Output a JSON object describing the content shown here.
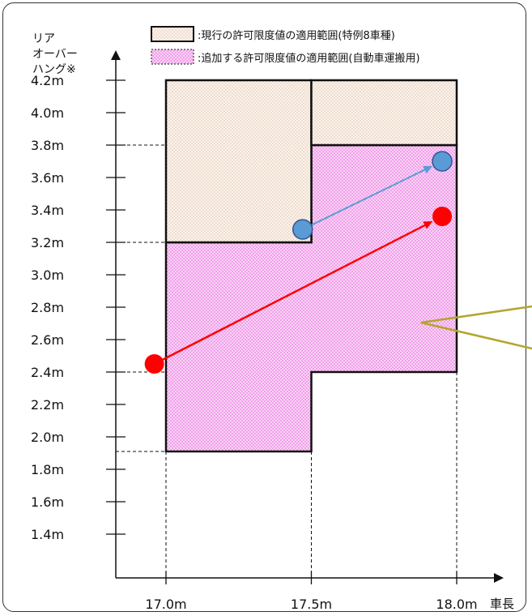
{
  "y_axis_title": [
    "リア",
    "オーバー",
    "ハング※"
  ],
  "x_axis_title": "車長",
  "legend": [
    {
      "label": ":現行の許可限度値の適用範囲(特例8車種)",
      "fill": "#f6e9de"
    },
    {
      "label": ":追加する許可限度値の適用範囲(自動車運搬用)",
      "fill": "#f5a9ef"
    }
  ],
  "chart_data": {
    "type": "diagram",
    "x_ticks": [
      "17.0m",
      "17.5m",
      "18.0m"
    ],
    "y_ticks": [
      "4.2m",
      "4.0m",
      "3.8m",
      "3.6m",
      "3.4m",
      "3.2m",
      "3.0m",
      "2.8m",
      "2.6m",
      "2.4m",
      "2.2m",
      "2.0m",
      "1.8m",
      "1.6m",
      "1.4m"
    ],
    "x_range": [
      17.0,
      18.0
    ],
    "y_range": [
      1.4,
      4.2
    ],
    "regions": [
      {
        "legend": 0,
        "polygon": [
          [
            17.0,
            3.2
          ],
          [
            17.0,
            4.2
          ],
          [
            17.5,
            4.2
          ],
          [
            17.5,
            3.2
          ]
        ]
      },
      {
        "legend": 0,
        "polygon": [
          [
            17.5,
            3.8
          ],
          [
            17.5,
            4.2
          ],
          [
            18.0,
            4.2
          ],
          [
            18.0,
            3.8
          ]
        ]
      },
      {
        "legend": 1,
        "polygon": [
          [
            17.0,
            1.91
          ],
          [
            17.0,
            3.2
          ],
          [
            17.5,
            3.2
          ],
          [
            17.5,
            3.8
          ],
          [
            18.0,
            3.8
          ],
          [
            18.0,
            2.4
          ],
          [
            17.5,
            2.4
          ],
          [
            17.5,
            1.91
          ]
        ]
      }
    ],
    "dashed_guides": [
      {
        "axis": "y",
        "value": 3.8
      },
      {
        "axis": "y",
        "value": 3.2
      },
      {
        "axis": "y",
        "value": 2.4
      },
      {
        "axis": "y",
        "value": 1.91
      },
      {
        "axis": "x",
        "value": 17.0
      },
      {
        "axis": "x",
        "value": 17.5
      },
      {
        "axis": "x",
        "value": 18.0
      }
    ],
    "arrows": [
      {
        "color": "#5b9bd5",
        "from": [
          17.47,
          3.28
        ],
        "to": [
          17.95,
          3.7
        ]
      },
      {
        "color": "#ff0000",
        "from": [
          16.96,
          2.45
        ],
        "to": [
          17.95,
          3.36
        ]
      }
    ],
    "callout_color": "#b3a52c"
  }
}
